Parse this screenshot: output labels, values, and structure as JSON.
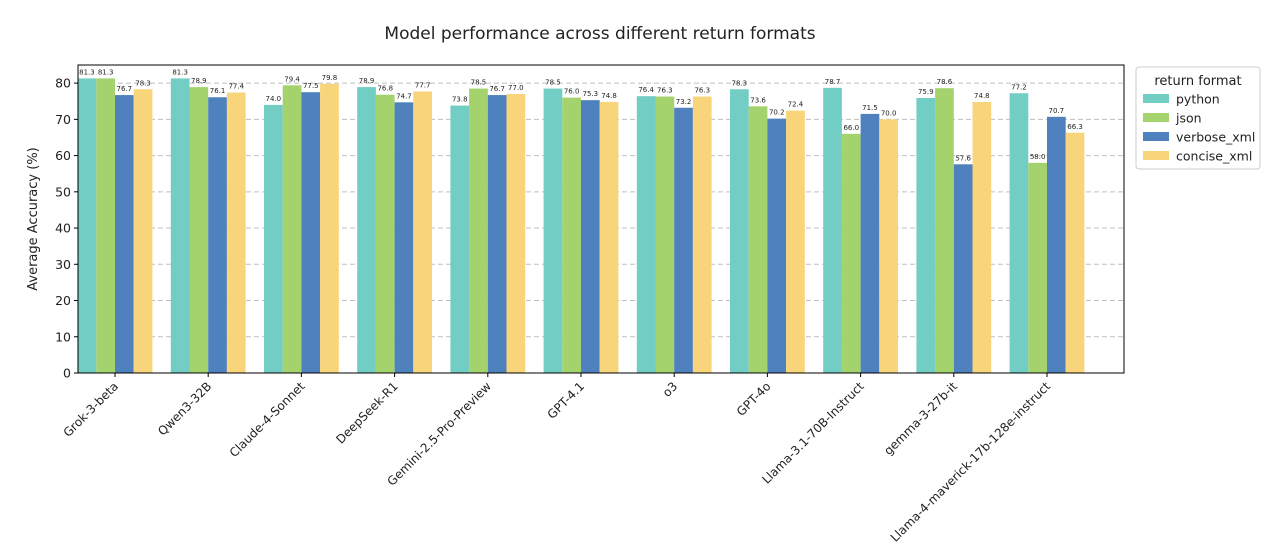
{
  "chart_data": {
    "type": "bar",
    "title": "Model performance across different return formats",
    "xlabel": "",
    "ylabel": "Average Accuracy (%)",
    "ylim": [
      0,
      85
    ],
    "yticks": [
      0,
      10,
      20,
      30,
      40,
      50,
      60,
      70,
      80
    ],
    "grid": "horizontal dashed",
    "legend": {
      "title": "return format",
      "placement": "outside-right-top"
    },
    "categories": [
      "Grok-3-beta",
      "Qwen3-32B",
      "Claude-4-Sonnet",
      "DeepSeek-R1",
      "Gemini-2.5-Pro-Preview",
      "GPT-4.1",
      "o3",
      "GPT-4o",
      "Llama-3.1-70B-Instruct",
      "gemma-3-27b-it",
      "Llama-4-maverick-17b-128e-instruct"
    ],
    "series": [
      {
        "name": "python",
        "color": "#72CDC4",
        "values": [
          81.3,
          81.3,
          74.0,
          78.9,
          73.8,
          78.5,
          76.4,
          78.3,
          78.7,
          75.9,
          77.2
        ]
      },
      {
        "name": "json",
        "color": "#A4D36E",
        "values": [
          81.3,
          78.9,
          79.4,
          76.8,
          78.5,
          76.0,
          76.3,
          73.6,
          66.0,
          78.6,
          58.0
        ]
      },
      {
        "name": "verbose_xml",
        "color": "#4F81BE",
        "values": [
          76.7,
          76.1,
          77.5,
          74.7,
          76.7,
          75.3,
          73.2,
          70.2,
          71.5,
          57.6,
          70.7
        ]
      },
      {
        "name": "concise_xml",
        "color": "#F8D57A",
        "values": [
          78.3,
          77.4,
          79.8,
          77.7,
          77.0,
          74.8,
          76.3,
          72.4,
          70.0,
          74.8,
          66.3
        ]
      }
    ]
  }
}
